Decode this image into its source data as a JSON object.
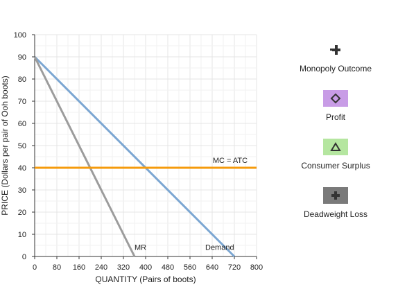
{
  "chart_data": {
    "type": "line",
    "xlabel": "QUANTITY (Pairs of boots)",
    "ylabel": "PRICE (Dollars per pair of Ooh boots)",
    "xlim": [
      0,
      800
    ],
    "ylim": [
      0,
      100
    ],
    "x_ticks": [
      "0",
      "80",
      "160",
      "240",
      "320",
      "400",
      "480",
      "560",
      "640",
      "720",
      "800"
    ],
    "y_ticks": [
      "0",
      "10",
      "20",
      "30",
      "40",
      "50",
      "60",
      "70",
      "80",
      "90",
      "100"
    ],
    "grid": true,
    "series": [
      {
        "name": "Demand",
        "color": "#7ba6d2",
        "points": [
          [
            0,
            90
          ],
          [
            720,
            0
          ]
        ]
      },
      {
        "name": "MR",
        "color": "#9c9c9c",
        "points": [
          [
            0,
            90
          ],
          [
            360,
            0
          ]
        ]
      },
      {
        "name": "MC = ATC",
        "color": "#f59b0c",
        "points": [
          [
            0,
            40
          ],
          [
            800,
            40
          ]
        ]
      }
    ]
  },
  "legend": {
    "items": [
      {
        "label": "Monopoly Outcome",
        "icon": "plus-marker-icon",
        "swatch_color": "#ffffff",
        "icon_color": "#333333"
      },
      {
        "label": "Profit",
        "icon": "diamond-icon",
        "swatch_color": "#c89ce6",
        "icon_color": "#333333"
      },
      {
        "label": "Consumer Surplus",
        "icon": "triangle-icon",
        "swatch_color": "#b5e6a0",
        "icon_color": "#333333"
      },
      {
        "label": "Deadweight Loss",
        "icon": "plus-icon",
        "swatch_color": "#7a7a7a",
        "icon_color": "#333333"
      }
    ]
  }
}
